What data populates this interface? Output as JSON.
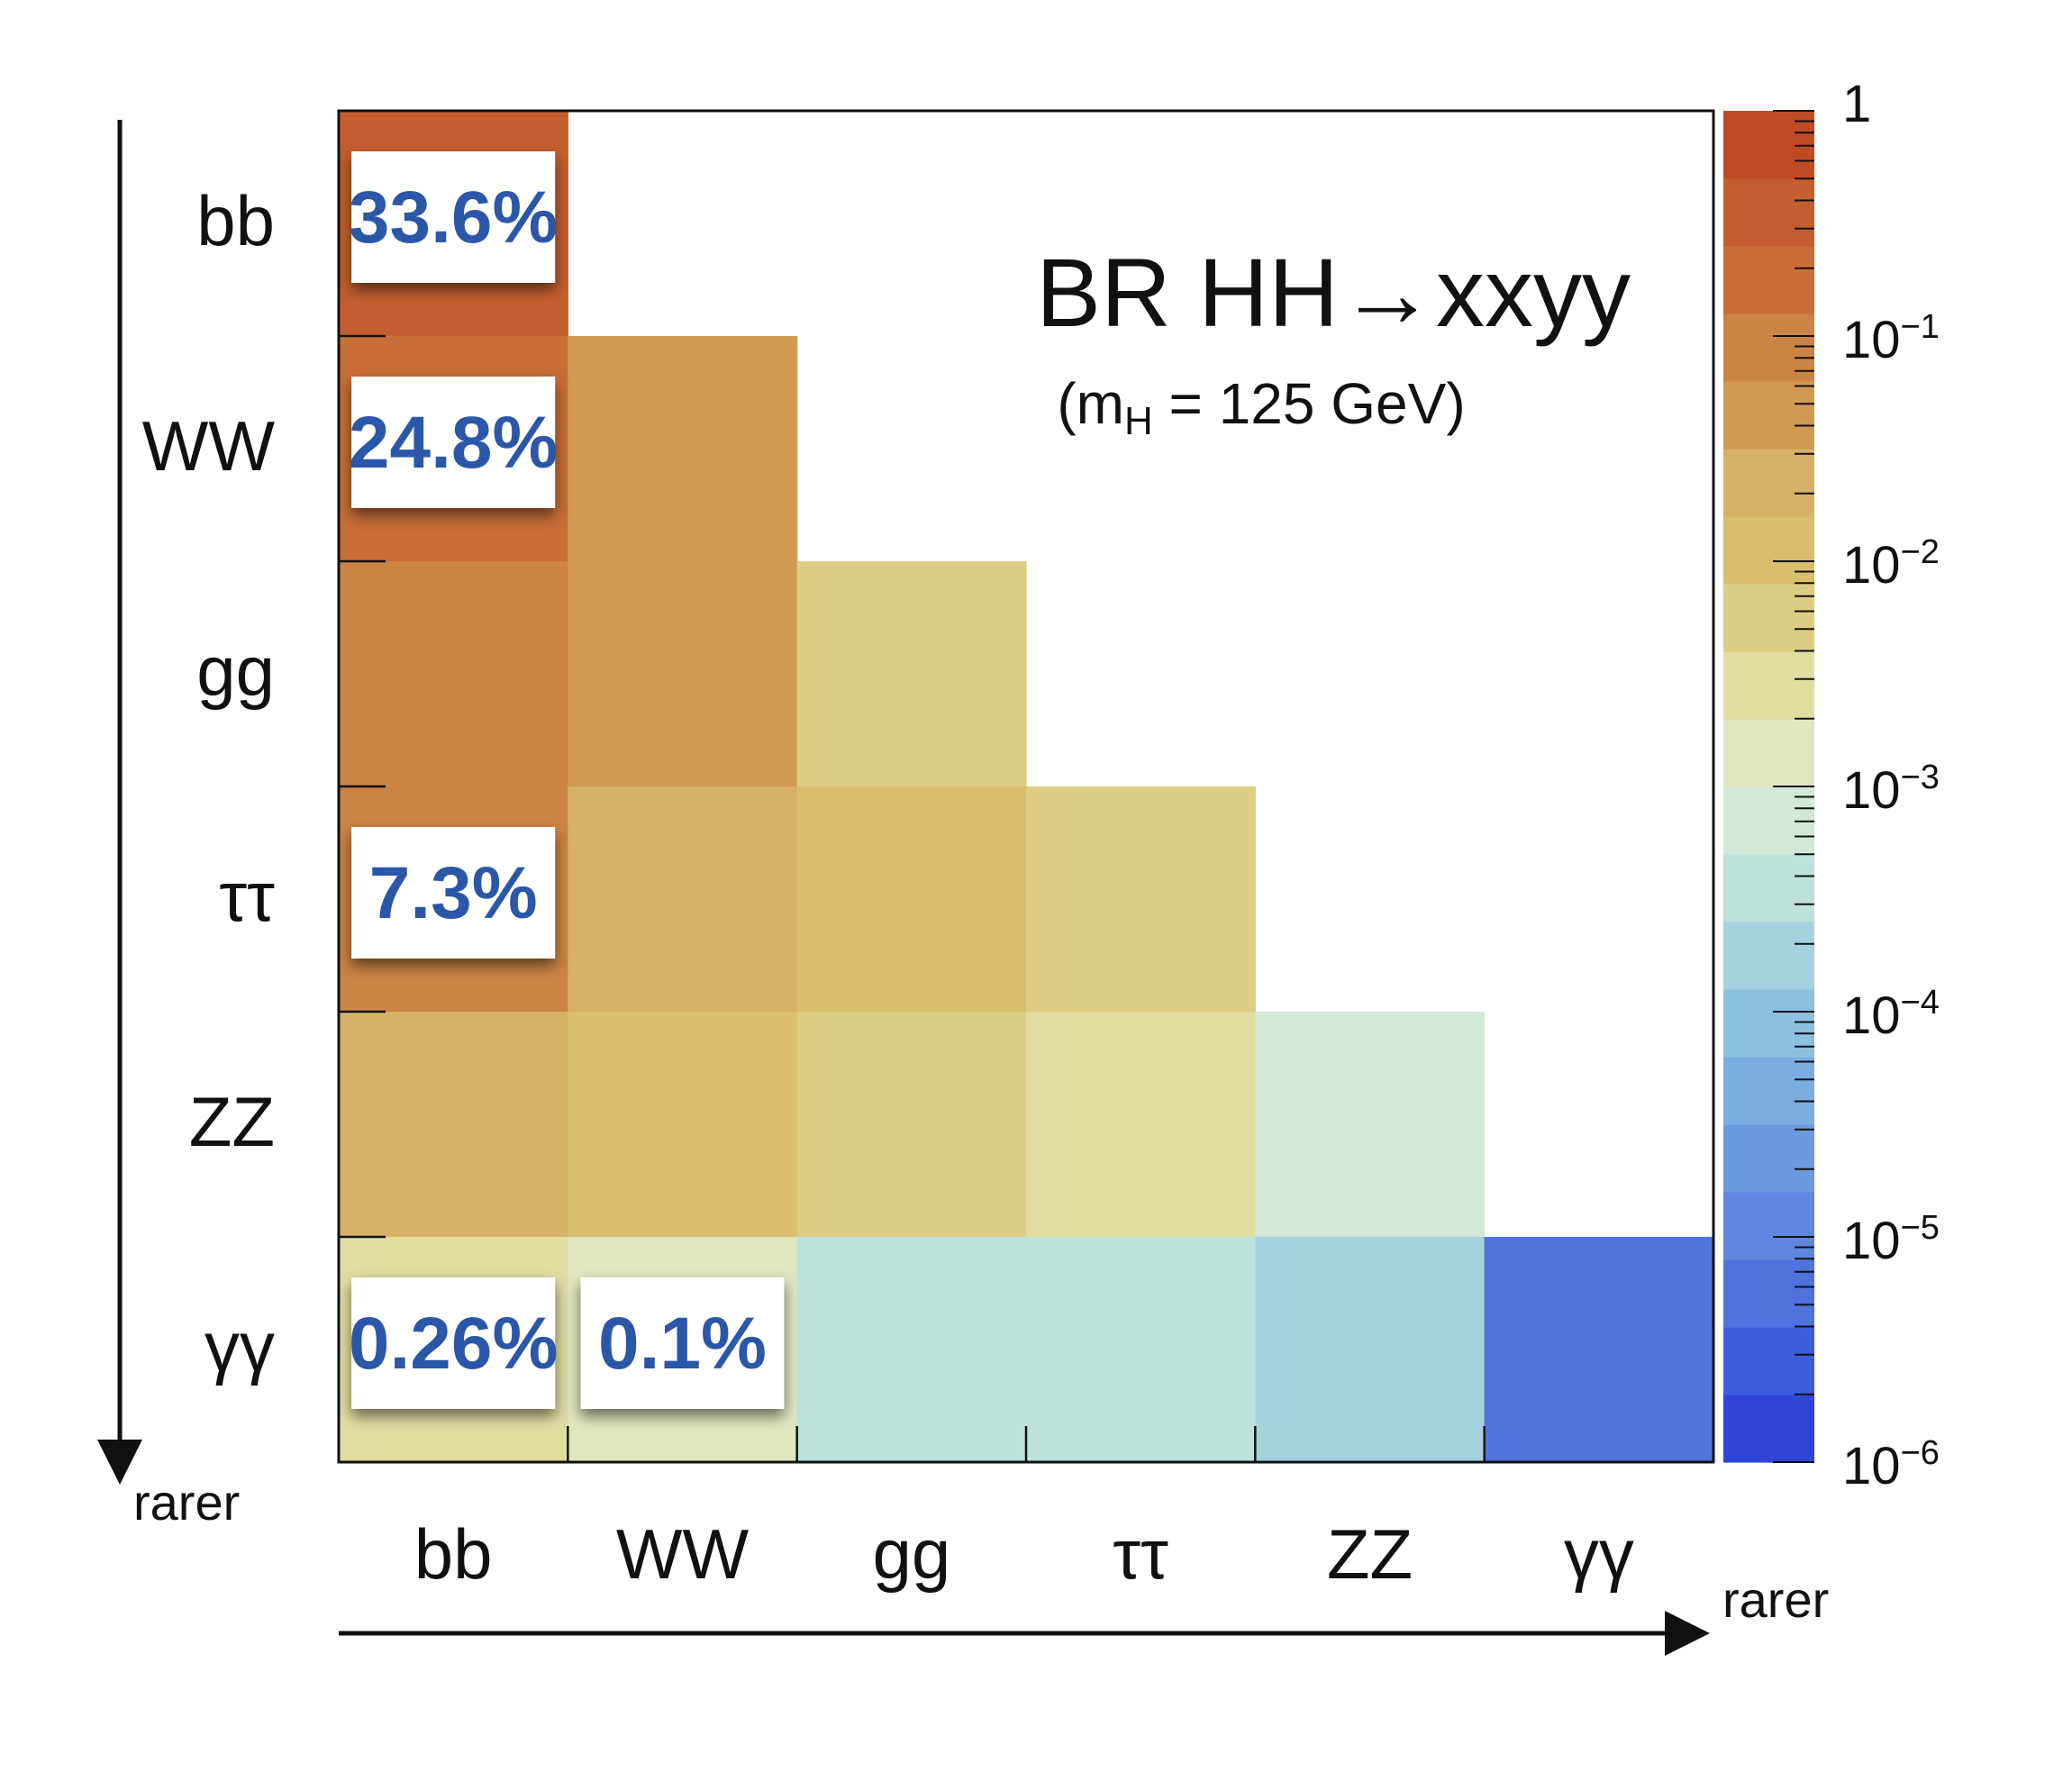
{
  "chart_data": {
    "type": "heatmap",
    "title": "BR HH→xxyy",
    "subtitle_prefix": "(m",
    "subtitle_sub": "H",
    "subtitle_suffix": " = 125 GeV)",
    "channels": [
      "bb",
      "WW",
      "gg",
      "ττ",
      "ZZ",
      "γγ"
    ],
    "row_axis_label": "rarer",
    "col_axis_label": "rarer",
    "matrix": [
      [
        0.336,
        null,
        null,
        null,
        null,
        null
      ],
      [
        0.248,
        0.046,
        null,
        null,
        null,
        null
      ],
      [
        0.12,
        0.045,
        0.0045,
        null,
        null,
        null
      ],
      [
        0.073,
        0.026,
        0.015,
        0.004,
        null,
        null
      ],
      [
        0.029,
        0.011,
        0.0047,
        0.0031,
        0.00069,
        null
      ],
      [
        0.0026,
        0.001,
        0.00044,
        0.00028,
        0.00016,
        5.3e-06
      ]
    ],
    "labels": [
      {
        "row": 0,
        "col": 0,
        "text": "33.6%"
      },
      {
        "row": 1,
        "col": 0,
        "text": "24.8%"
      },
      {
        "row": 3,
        "col": 0,
        "text": "7.3%"
      },
      {
        "row": 5,
        "col": 0,
        "text": "0.26%"
      },
      {
        "row": 5,
        "col": 1,
        "text": "0.1%"
      }
    ],
    "colorbar": {
      "scale": "log",
      "range": [
        1e-06,
        1
      ],
      "tick_labels": [
        {
          "value": 1,
          "base": "1",
          "exp": ""
        },
        {
          "value": 0.1,
          "base": "10",
          "exp": "−1"
        },
        {
          "value": 0.01,
          "base": "10",
          "exp": "−2"
        },
        {
          "value": 0.001,
          "base": "10",
          "exp": "−3"
        },
        {
          "value": 0.0001,
          "base": "10",
          "exp": "−4"
        },
        {
          "value": 1e-05,
          "base": "10",
          "exp": "−5"
        },
        {
          "value": 1e-06,
          "base": "10",
          "exp": "−6"
        }
      ],
      "colors": [
        "#2e45d8",
        "#3d5cdc",
        "#4f72dc",
        "#5f87de",
        "#6b9adf",
        "#7aaee0",
        "#8bc0df",
        "#a4d2df",
        "#bde1db",
        "#d1e8d6",
        "#e0e6c0",
        "#e1dda1",
        "#dccd83",
        "#d9be6d",
        "#d6b066",
        "#d09a53",
        "#cb8444",
        "#c86e37",
        "#c45e2e",
        "#bf4b25"
      ]
    }
  }
}
